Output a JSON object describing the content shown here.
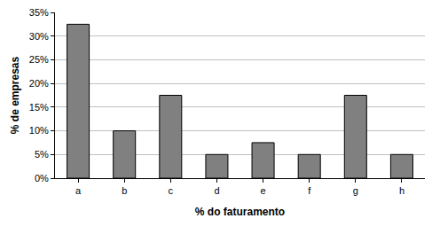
{
  "chart_data": {
    "type": "bar",
    "xlabel": "% do faturamento",
    "ylabel": "% de empresas",
    "categories": [
      "a",
      "b",
      "c",
      "d",
      "e",
      "f",
      "g",
      "h"
    ],
    "values": [
      32.5,
      10,
      17.5,
      5,
      7.5,
      5,
      17.5,
      5
    ],
    "color": "#808080",
    "ylim": [
      0,
      35
    ],
    "yticks": [
      {
        "value": 0,
        "label": "0%"
      },
      {
        "value": 5,
        "label": "5%"
      },
      {
        "value": 10,
        "label": "10%"
      },
      {
        "value": 15,
        "label": "15%"
      },
      {
        "value": 20,
        "label": "20%"
      },
      {
        "value": 25,
        "label": "25%"
      },
      {
        "value": 30,
        "label": "30%"
      },
      {
        "value": 35,
        "label": "35%"
      }
    ],
    "grid": true
  }
}
